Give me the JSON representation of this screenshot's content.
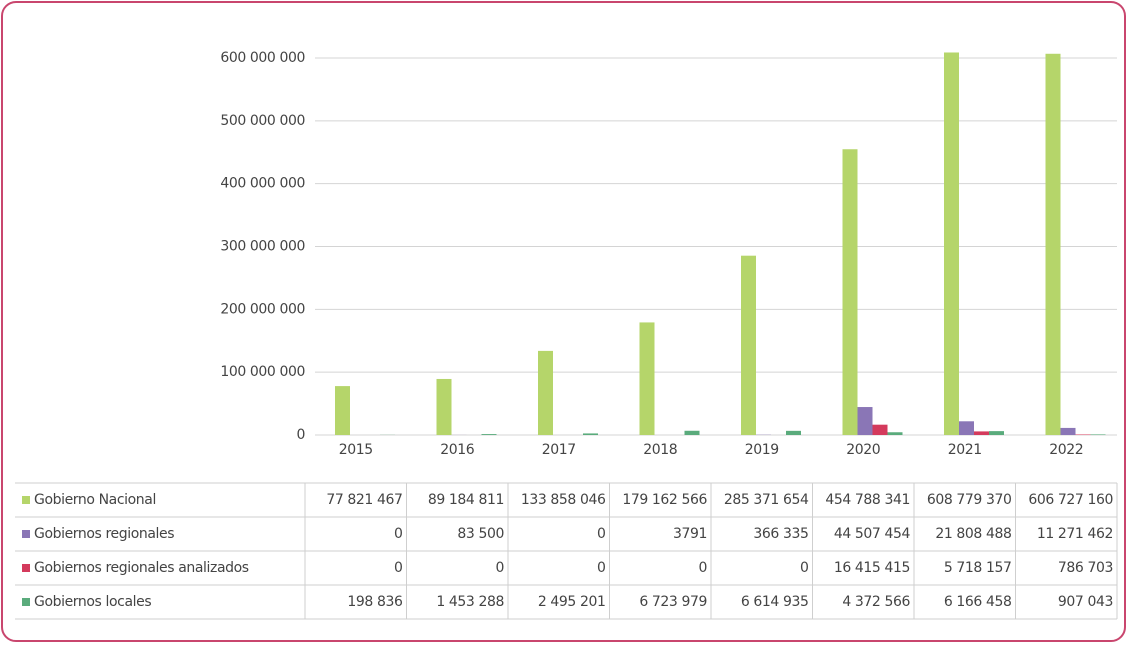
{
  "chart_data": {
    "type": "bar",
    "categories": [
      "2015",
      "2016",
      "2017",
      "2018",
      "2019",
      "2020",
      "2021",
      "2022"
    ],
    "series": [
      {
        "name": "Gobierno Nacional",
        "color": "#b5d56a",
        "values": [
          77821467,
          89184811,
          133858046,
          179162566,
          285371654,
          454788341,
          608779370,
          606727160
        ],
        "value_labels": [
          "77 821 467",
          "89 184 811",
          "133 858 046",
          "179 162 566",
          "285 371 654",
          "454 788 341",
          "608 779 370",
          "606 727 160"
        ]
      },
      {
        "name": "Gobiernos regionales",
        "color": "#8a76b6",
        "values": [
          0,
          83500,
          0,
          3791,
          366335,
          44507454,
          21808488,
          11271462
        ],
        "value_labels": [
          "0",
          "83 500",
          "0",
          "3791",
          "366 335",
          "44 507 454",
          "21 808 488",
          "11 271 462"
        ]
      },
      {
        "name": "Gobiernos regionales analizados",
        "color": "#d43a5c",
        "values": [
          0,
          0,
          0,
          0,
          0,
          16415415,
          5718157,
          786703
        ],
        "value_labels": [
          "0",
          "0",
          "0",
          "0",
          "0",
          "16 415 415",
          "5 718 157",
          "786 703"
        ]
      },
      {
        "name": "Gobiernos locales",
        "color": "#5aab7c",
        "values": [
          198836,
          1453288,
          2495201,
          6723979,
          6614935,
          4372566,
          6166458,
          907043
        ],
        "value_labels": [
          "198 836",
          "1 453 288",
          "2 495 201",
          "6 723 979",
          "6 614 935",
          "4 372 566",
          "6 166 458",
          "907 043"
        ]
      }
    ],
    "ylim": [
      0,
      600000000
    ],
    "yticks": [
      0,
      {
        "value": 100000000,
        "label": "100 000 000"
      },
      {
        "value": 200000000,
        "label": "200 000 000"
      },
      {
        "value": 300000000,
        "label": "300 000 000"
      },
      {
        "value": 400000000,
        "label": "400 000 000"
      },
      {
        "value": 500000000,
        "label": "500 000 000"
      },
      {
        "value": 600000000,
        "label": "600 000 000"
      }
    ],
    "grid": true
  }
}
